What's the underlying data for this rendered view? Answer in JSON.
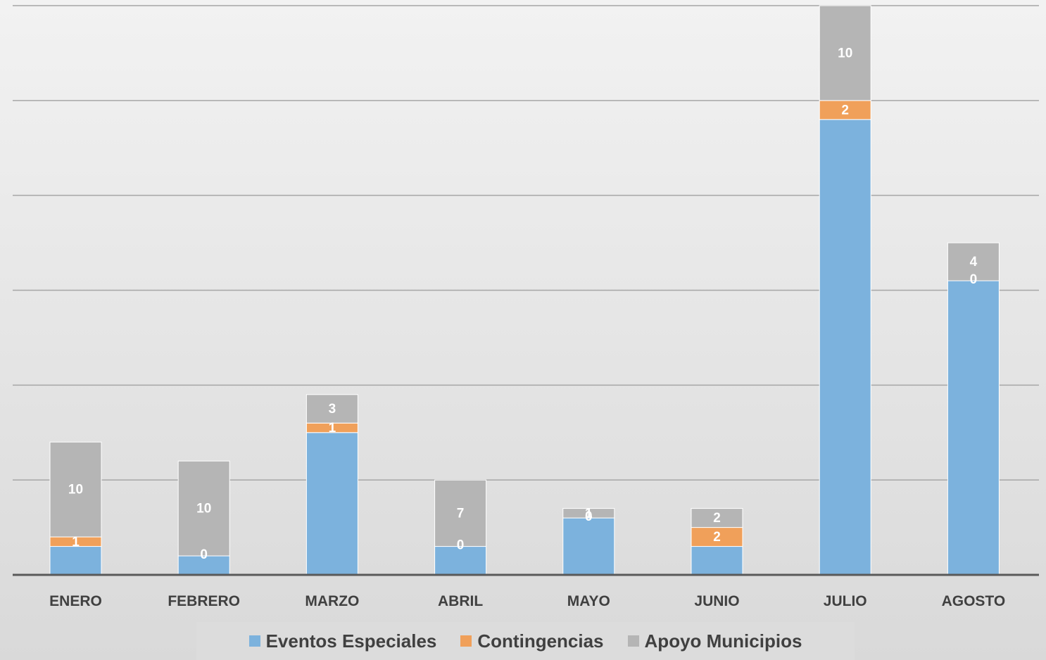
{
  "chart_data": {
    "type": "bar",
    "stacked": true,
    "categories": [
      "ENERO",
      "FEBRERO",
      "MARZO",
      "ABRIL",
      "MAYO",
      "JUNIO",
      "JULIO",
      "AGOSTO"
    ],
    "series": [
      {
        "name": "Eventos Especiales",
        "color": "#7cb2dd",
        "values": [
          3,
          2,
          15,
          3,
          6,
          3,
          48,
          31
        ],
        "labels": [
          "",
          "",
          "",
          "",
          "",
          "",
          "",
          ""
        ]
      },
      {
        "name": "Contingencias",
        "color": "#f0a05a",
        "values": [
          1,
          0,
          1,
          0,
          0,
          2,
          2,
          0
        ],
        "labels": [
          "1",
          "0",
          "1",
          "0",
          "0",
          "2",
          "2",
          "0"
        ]
      },
      {
        "name": "Apoyo Municipios",
        "color": "#b5b5b5",
        "values": [
          10,
          10,
          3,
          7,
          1,
          2,
          10,
          4
        ],
        "labels": [
          "10",
          "10",
          "3",
          "7",
          "1",
          "2",
          "10",
          "4"
        ]
      }
    ],
    "ylim": [
      0,
      60
    ],
    "gridlines": [
      10,
      20,
      30,
      40,
      50,
      60
    ],
    "legend": "bottom"
  }
}
